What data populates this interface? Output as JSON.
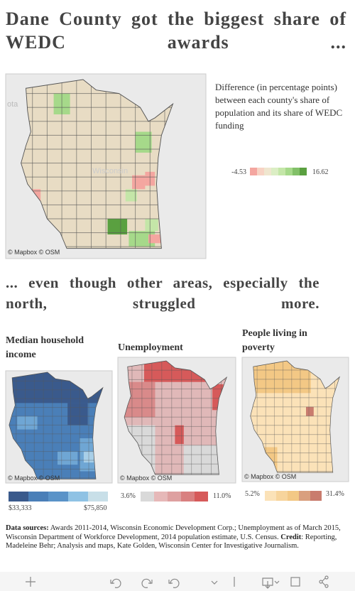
{
  "header": {
    "title": "Dane County got the biggest share of WEDC awards ...",
    "subtitle": "... even though other areas, especially the north, struggled more."
  },
  "main_map": {
    "attribution": "© Mapbox © OSM",
    "state_label": "Wisconsin",
    "side_label": "ota",
    "legend_text": "Difference (in percentage points) between each county's share of population and its share of WEDC funding",
    "legend_min": "-4.53",
    "legend_max": "16.62"
  },
  "small_maps": [
    {
      "title": "Median household income",
      "attribution": "© Mapbox © OSM",
      "legend_min": "$33,333",
      "legend_max": "$75,850"
    },
    {
      "title": "Unemployment",
      "attribution": "© Mapbox © OSM",
      "legend_min": "3.6%",
      "legend_max": "11.0%"
    },
    {
      "title": "People living in poverty",
      "attribution": "© Mapbox © OSM",
      "legend_min": "5.2%",
      "legend_max": "31.4%"
    }
  ],
  "sources": {
    "label1": "Data sources:",
    "text1": " Awards 2011-2014, Wisconsin Economic Development Corp.; Unemployment as of March 2015, Wisconsin Department of Workforce Development, 2014 population estimate, U.S. Census. ",
    "label2": "Credit",
    "text2": ": Reporting, Madeleine Behr; Analysis and maps, Kate Golden, Wisconsin Center for Investigative Journalism."
  }
}
